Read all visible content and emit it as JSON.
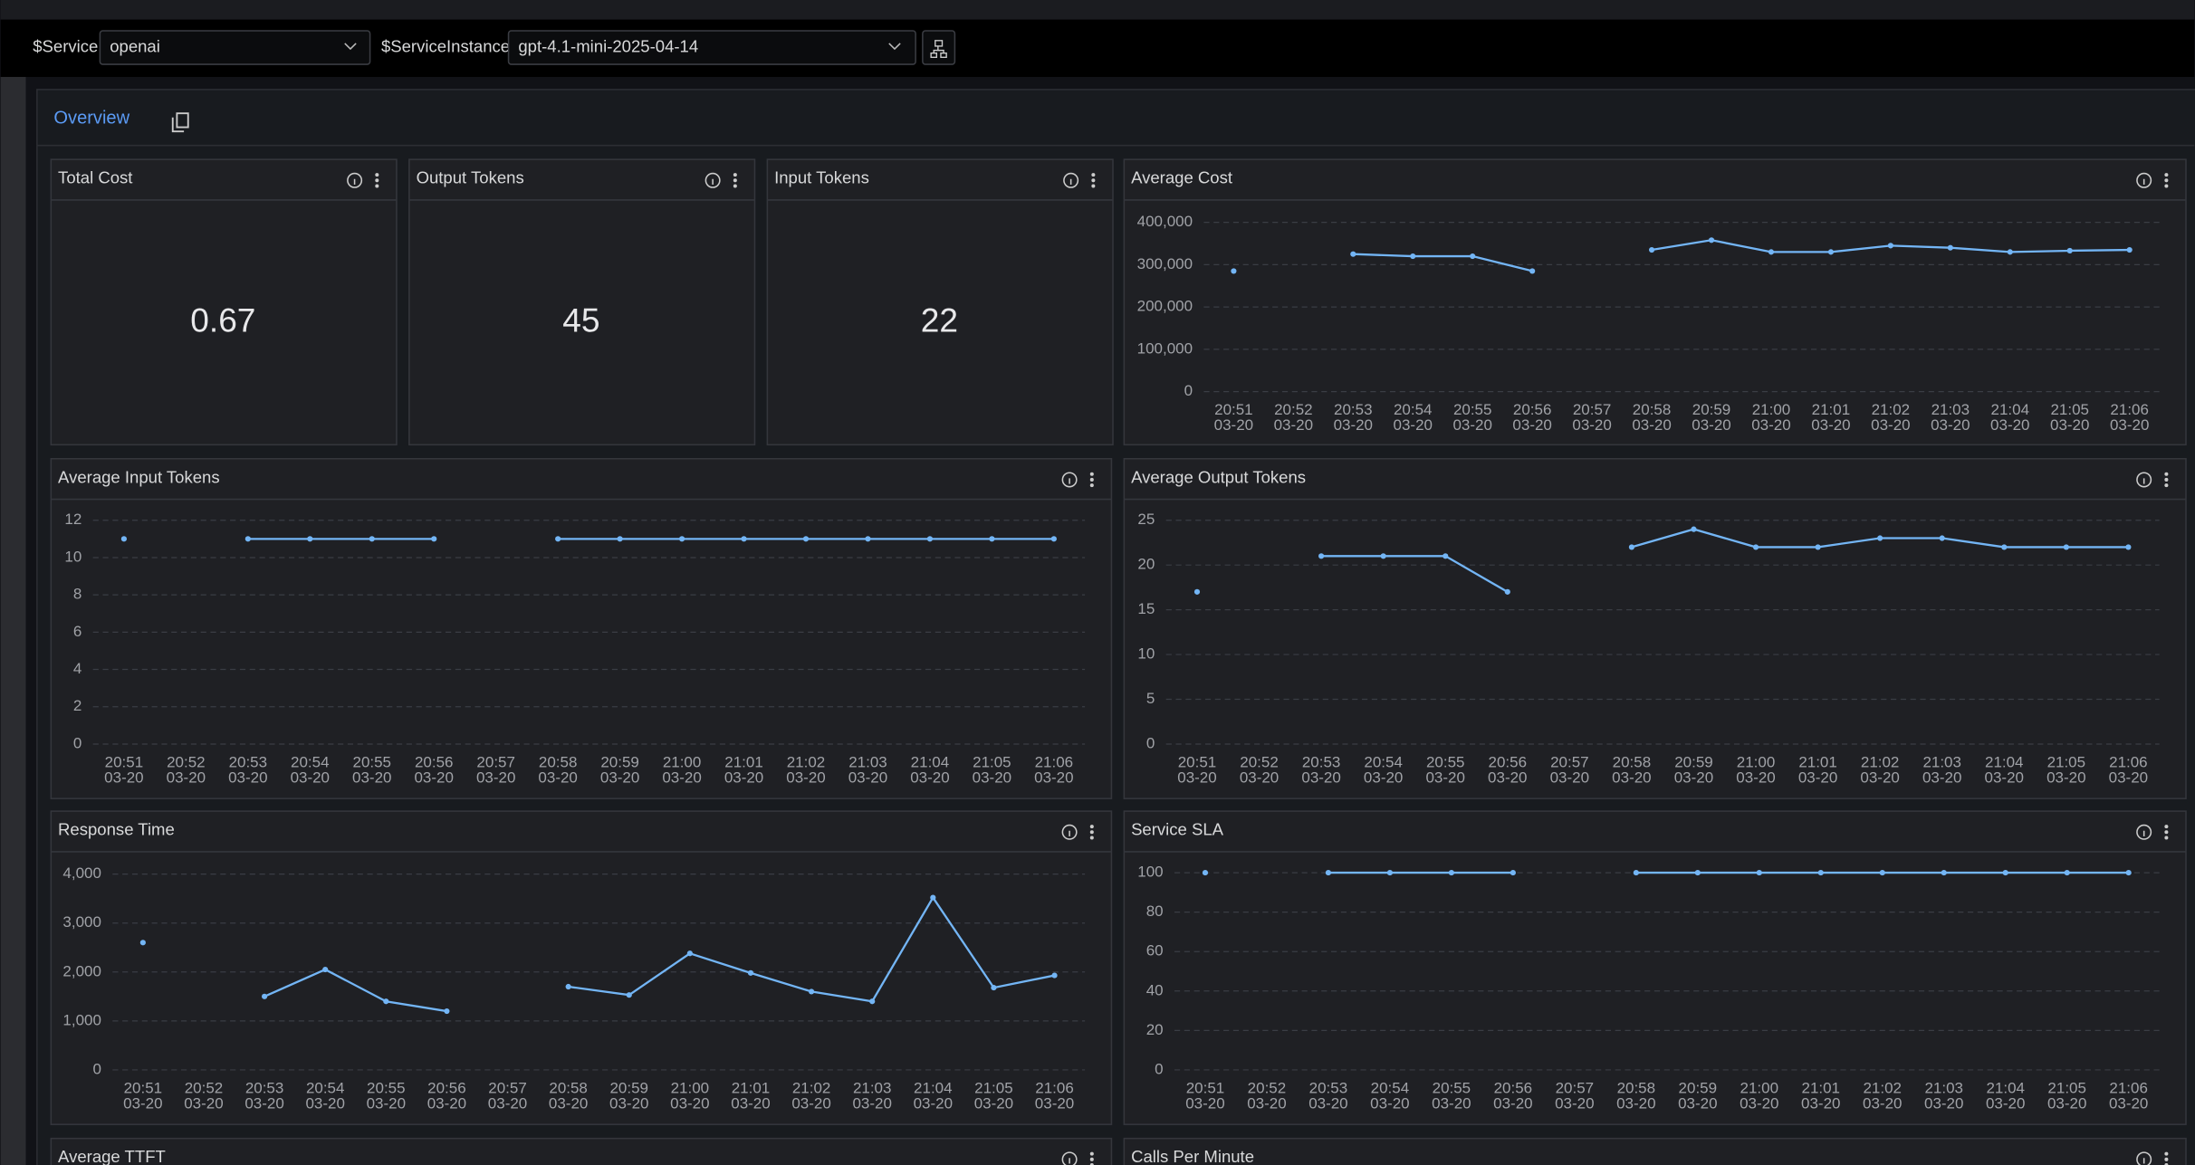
{
  "filters": {
    "service_label": "$Service",
    "service_value": "openai",
    "instance_label": "$ServiceInstance",
    "instance_value": "gpt-4.1-mini-2025-04-14"
  },
  "tab": "Overview",
  "stats": [
    {
      "title": "Total Cost",
      "value": 0.67
    },
    {
      "title": "Output Tokens",
      "value": 45
    },
    {
      "title": "Input Tokens",
      "value": 22
    }
  ],
  "chart_data": [
    {
      "type": "line",
      "title": "Average Cost",
      "color": "#73b5f5",
      "grid": true,
      "categories": [
        "20:51\n03-20",
        "20:52\n03-20",
        "20:53\n03-20",
        "20:54\n03-20",
        "20:55\n03-20",
        "20:56\n03-20",
        "20:57\n03-20",
        "20:58\n03-20",
        "20:59\n03-20",
        "21:00\n03-20",
        "21:01\n03-20",
        "21:02\n03-20",
        "21:03\n03-20",
        "21:04\n03-20",
        "21:05\n03-20",
        "21:06\n03-20"
      ],
      "values": [
        285000,
        null,
        325000,
        320000,
        320000,
        285000,
        null,
        335000,
        358000,
        330000,
        330000,
        345000,
        340000,
        330000,
        333000,
        335000
      ],
      "ylim": [
        0,
        400000
      ],
      "yticks": [
        0,
        {
          "value": 100000,
          "label": "100,000"
        },
        {
          "value": 200000,
          "label": "200,000"
        },
        {
          "value": 300000,
          "label": "300,000"
        },
        {
          "value": 400000,
          "label": "400,000"
        }
      ]
    },
    {
      "type": "line",
      "title": "Average Input Tokens",
      "color": "#73b5f5",
      "grid": true,
      "categories": [
        "20:51\n03-20",
        "20:52\n03-20",
        "20:53\n03-20",
        "20:54\n03-20",
        "20:55\n03-20",
        "20:56\n03-20",
        "20:57\n03-20",
        "20:58\n03-20",
        "20:59\n03-20",
        "21:00\n03-20",
        "21:01\n03-20",
        "21:02\n03-20",
        "21:03\n03-20",
        "21:04\n03-20",
        "21:05\n03-20",
        "21:06\n03-20"
      ],
      "values": [
        11,
        null,
        11,
        11,
        11,
        11,
        null,
        11,
        11,
        11,
        11,
        11,
        11,
        11,
        11,
        11
      ],
      "ylim": [
        0,
        12
      ],
      "yticks": [
        0,
        2,
        4,
        6,
        8,
        10,
        12
      ]
    },
    {
      "type": "line",
      "title": "Average Output Tokens",
      "color": "#73b5f5",
      "grid": true,
      "categories": [
        "20:51\n03-20",
        "20:52\n03-20",
        "20:53\n03-20",
        "20:54\n03-20",
        "20:55\n03-20",
        "20:56\n03-20",
        "20:57\n03-20",
        "20:58\n03-20",
        "20:59\n03-20",
        "21:00\n03-20",
        "21:01\n03-20",
        "21:02\n03-20",
        "21:03\n03-20",
        "21:04\n03-20",
        "21:05\n03-20",
        "21:06\n03-20"
      ],
      "values": [
        17,
        null,
        21,
        21,
        21,
        17,
        null,
        22,
        24,
        22,
        22,
        23,
        23,
        22,
        22,
        22
      ],
      "ylim": [
        0,
        25
      ],
      "yticks": [
        0,
        5,
        10,
        15,
        20,
        25
      ]
    },
    {
      "type": "line",
      "title": "Response Time",
      "color": "#73b5f5",
      "grid": true,
      "categories": [
        "20:51\n03-20",
        "20:52\n03-20",
        "20:53\n03-20",
        "20:54\n03-20",
        "20:55\n03-20",
        "20:56\n03-20",
        "20:57\n03-20",
        "20:58\n03-20",
        "20:59\n03-20",
        "21:00\n03-20",
        "21:01\n03-20",
        "21:02\n03-20",
        "21:03\n03-20",
        "21:04\n03-20",
        "21:05\n03-20",
        "21:06\n03-20"
      ],
      "values": [
        2600,
        null,
        1500,
        2050,
        1400,
        1200,
        null,
        1700,
        1530,
        2380,
        1980,
        1600,
        1400,
        3520,
        1680,
        1930
      ],
      "ylim": [
        0,
        4000
      ],
      "yticks": [
        0,
        {
          "value": 1000,
          "label": "1,000"
        },
        {
          "value": 2000,
          "label": "2,000"
        },
        {
          "value": 3000,
          "label": "3,000"
        },
        {
          "value": 4000,
          "label": "4,000"
        }
      ]
    },
    {
      "type": "line",
      "title": "Service SLA",
      "color": "#73b5f5",
      "grid": true,
      "categories": [
        "20:51\n03-20",
        "20:52\n03-20",
        "20:53\n03-20",
        "20:54\n03-20",
        "20:55\n03-20",
        "20:56\n03-20",
        "20:57\n03-20",
        "20:58\n03-20",
        "20:59\n03-20",
        "21:00\n03-20",
        "21:01\n03-20",
        "21:02\n03-20",
        "21:03\n03-20",
        "21:04\n03-20",
        "21:05\n03-20",
        "21:06\n03-20"
      ],
      "values": [
        100,
        null,
        100,
        100,
        100,
        100,
        null,
        100,
        100,
        100,
        100,
        100,
        100,
        100,
        100,
        100
      ],
      "ylim": [
        0,
        100
      ],
      "yticks": [
        0,
        20,
        40,
        60,
        80,
        100
      ]
    }
  ],
  "more_panels": [
    {
      "title": "Average TTFT"
    },
    {
      "title": "Calls Per Minute"
    }
  ]
}
